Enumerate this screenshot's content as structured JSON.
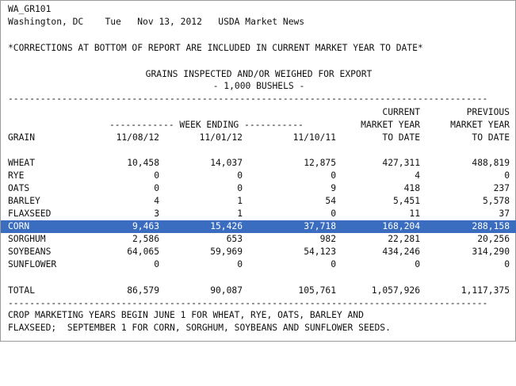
{
  "report": {
    "id": "WA_GR101",
    "location": "Washington, DC",
    "day": "Tue",
    "date": "Nov 13, 2012",
    "source": "USDA Market News",
    "corrections_note": "*CORRECTIONS AT BOTTOM OF REPORT ARE INCLUDED IN CURRENT MARKET YEAR TO DATE*",
    "title": "GRAINS INSPECTED AND/OR WEIGHED FOR EXPORT",
    "subtitle": "- 1,000 BUSHELS -",
    "separator": "-----------------------------------------------------------------------------------------"
  },
  "columns": {
    "current_l1": "CURRENT",
    "previous_l1": "PREVIOUS",
    "week_ending": "------------ WEEK ENDING -----------",
    "current_l2": "MARKET YEAR",
    "previous_l2": "MARKET YEAR",
    "grain": "GRAIN",
    "date1": "11/08/12",
    "date2": "11/01/12",
    "date3": "11/10/11",
    "current_l3": "TO DATE",
    "previous_l3": "TO DATE"
  },
  "rows": [
    {
      "grain": "WHEAT",
      "v1": "10,458",
      "v2": "14,037",
      "v3": "12,875",
      "v4": "427,311",
      "v5": "488,819"
    },
    {
      "grain": "RYE",
      "v1": "0",
      "v2": "0",
      "v3": "0",
      "v4": "4",
      "v5": "0"
    },
    {
      "grain": "OATS",
      "v1": "0",
      "v2": "0",
      "v3": "9",
      "v4": "418",
      "v5": "237"
    },
    {
      "grain": "BARLEY",
      "v1": "4",
      "v2": "1",
      "v3": "54",
      "v4": "5,451",
      "v5": "5,578"
    },
    {
      "grain": "FLAXSEED",
      "v1": "3",
      "v2": "1",
      "v3": "0",
      "v4": "11",
      "v5": "37"
    },
    {
      "grain": "CORN",
      "v1": "9,463",
      "v2": "15,426",
      "v3": "37,718",
      "v4": "168,204",
      "v5": "288,158"
    },
    {
      "grain": "SORGHUM",
      "v1": "2,586",
      "v2": "653",
      "v3": "982",
      "v4": "22,281",
      "v5": "20,256"
    },
    {
      "grain": "SOYBEANS",
      "v1": "64,065",
      "v2": "59,969",
      "v3": "54,123",
      "v4": "434,246",
      "v5": "314,290"
    },
    {
      "grain": "SUNFLOWER",
      "v1": "0",
      "v2": "0",
      "v3": "0",
      "v4": "0",
      "v5": "0"
    }
  ],
  "total": {
    "grain": "TOTAL",
    "v1": "86,579",
    "v2": "90,087",
    "v3": "105,761",
    "v4": "1,057,926",
    "v5": "1,117,375"
  },
  "footer": {
    "line1": "CROP MARKETING YEARS BEGIN JUNE 1 FOR WHEAT, RYE, OATS, BARLEY AND",
    "line2": "FLAXSEED;  SEPTEMBER 1 FOR CORN, SORGHUM, SOYBEANS AND SUNFLOWER SEEDS."
  },
  "colors": {
    "selection": "#3a6cbf"
  }
}
